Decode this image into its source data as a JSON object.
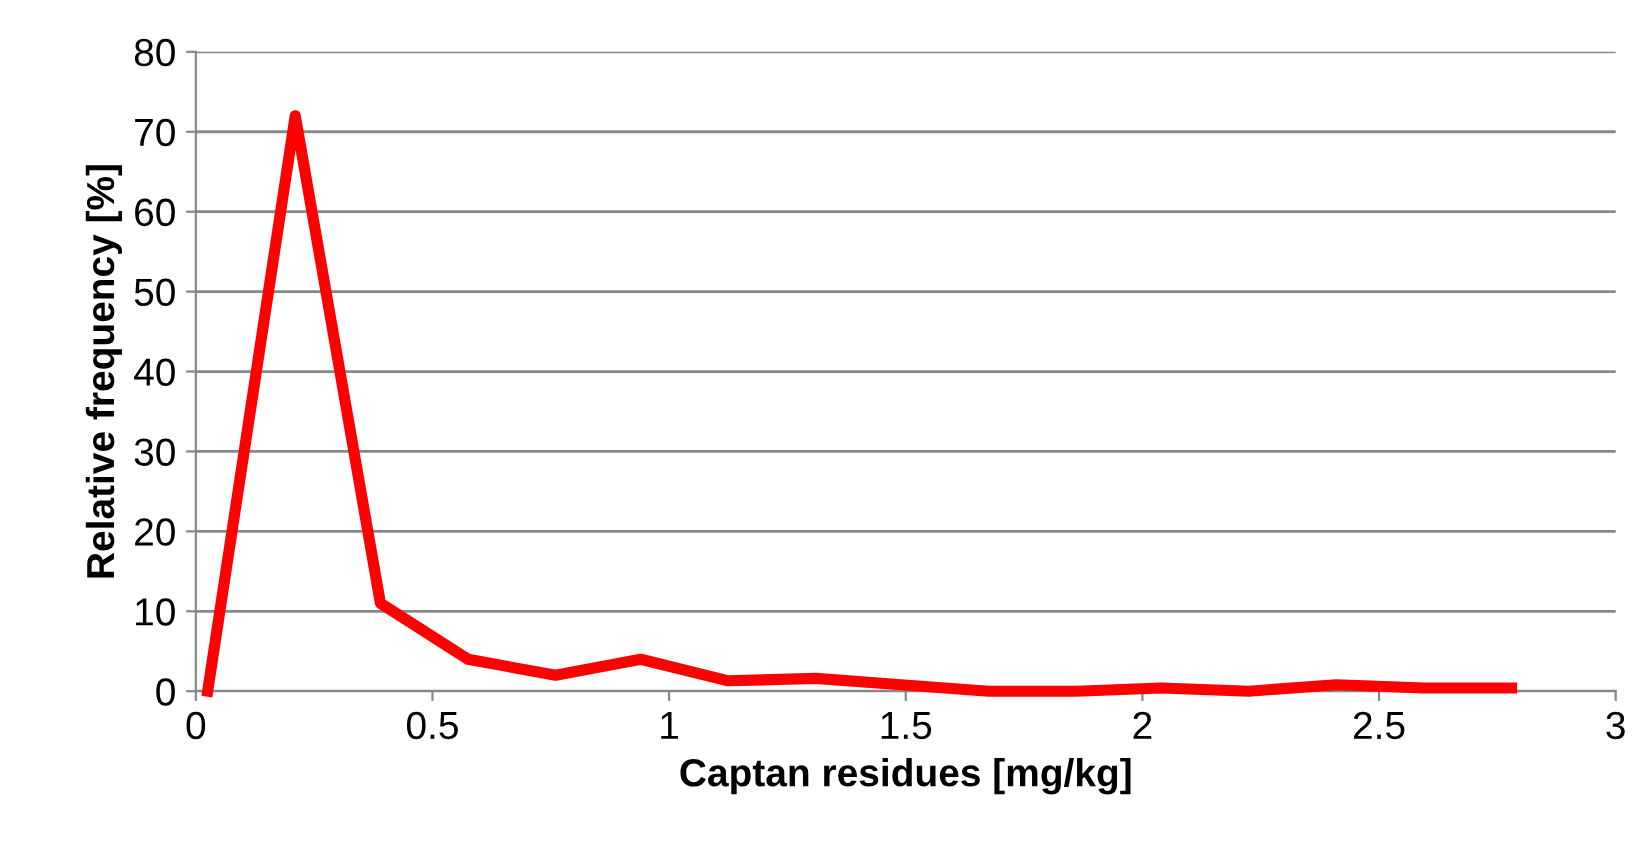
{
  "chart_data": {
    "type": "line",
    "xlabel": "Captan residues [mg/kg]",
    "ylabel": "Relative frequency [%]",
    "x": [
      0.025,
      0.21,
      0.39,
      0.575,
      0.76,
      0.94,
      1.125,
      1.31,
      1.49,
      1.675,
      1.86,
      2.04,
      2.225,
      2.41,
      2.595,
      2.78
    ],
    "series": [
      {
        "color": "#ff0000",
        "values": [
          0,
          72,
          11,
          4,
          2,
          4,
          1.3,
          1.6,
          0.8,
          0,
          0,
          0.4,
          0,
          0.8,
          0.4,
          0.4
        ]
      }
    ],
    "xlim": [
      0,
      3
    ],
    "xticks": [
      0,
      0.5,
      1,
      1.5,
      2,
      2.5,
      3
    ],
    "ylim": [
      0,
      80
    ],
    "yticks": [
      0,
      10,
      20,
      30,
      40,
      50,
      60,
      70,
      80
    ],
    "grid": "y",
    "marker": "none",
    "line_style": "solid",
    "legend": false
  }
}
